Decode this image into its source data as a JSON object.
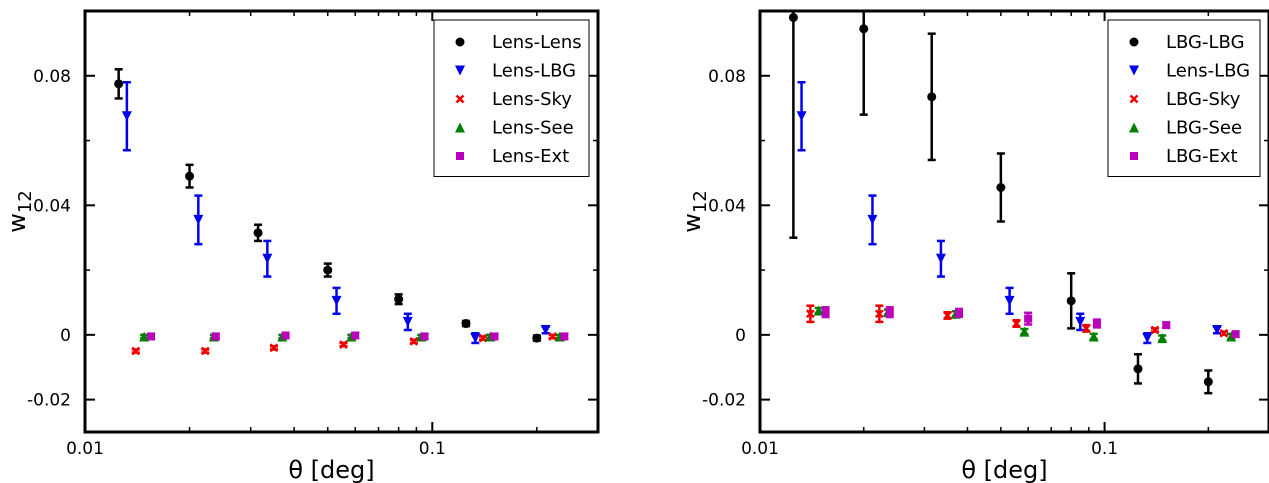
{
  "chart_data": [
    {
      "type": "scatter",
      "xlabel": "θ [deg]",
      "ylabel": "w12",
      "xscale": "log",
      "xlim": [
        0.01,
        0.3
      ],
      "ylim": [
        -0.03,
        0.1
      ],
      "xticks": [
        {
          "v": 0.01,
          "label": "0.01"
        },
        {
          "v": 0.1,
          "label": "0.1"
        }
      ],
      "yticks": [
        {
          "v": 0.08,
          "label": "0.08"
        },
        {
          "v": 0.04,
          "label": "0.04"
        },
        {
          "v": 0,
          "label": "0"
        },
        {
          "v": -0.02,
          "label": "-0.02"
        }
      ],
      "legend_position": "top-right",
      "series": [
        {
          "name": "Lens-Lens",
          "marker": "circle",
          "color": "#000000",
          "x": [
            0.0125,
            0.02,
            0.0315,
            0.05,
            0.08,
            0.125,
            0.2
          ],
          "y": [
            0.0775,
            0.049,
            0.0315,
            0.02,
            0.011,
            0.0035,
            -0.001
          ],
          "err": [
            0.0045,
            0.0035,
            0.0025,
            0.002,
            0.0015,
            0.0008,
            0.0008
          ]
        },
        {
          "name": "Lens-LBG",
          "marker": "triangle-down",
          "color": "#0000ee",
          "x": [
            0.0132,
            0.0212,
            0.0335,
            0.053,
            0.085,
            0.133,
            0.212
          ],
          "y": [
            0.0675,
            0.0355,
            0.0235,
            0.0105,
            0.004,
            -0.001,
            0.0015
          ],
          "err": [
            0.0105,
            0.0075,
            0.0055,
            0.004,
            0.0025,
            0.0015,
            0.001
          ]
        },
        {
          "name": "Lens-Sky",
          "marker": "x",
          "color": "#ee0000",
          "x": [
            0.014,
            0.0222,
            0.035,
            0.0555,
            0.0885,
            0.14,
            0.222
          ],
          "y": [
            -0.005,
            -0.005,
            -0.004,
            -0.003,
            -0.002,
            -0.001,
            -0.0005
          ],
          "err": [
            0.0005,
            0.0005,
            0.0005,
            0.0005,
            0.0005,
            0.0005,
            0.0005
          ]
        },
        {
          "name": "Lens-See",
          "marker": "triangle-up",
          "color": "#008000",
          "x": [
            0.0148,
            0.0235,
            0.037,
            0.0585,
            0.093,
            0.147,
            0.233
          ],
          "y": [
            -0.0005,
            -0.0005,
            -0.0005,
            -0.0005,
            -0.0005,
            -0.0005,
            -0.0005
          ],
          "err": [
            0.0005,
            0.0005,
            0.0005,
            0.0005,
            0.0005,
            0.0005,
            0.0005
          ]
        },
        {
          "name": "Lens-Ext",
          "marker": "square",
          "color": "#bb00bb",
          "x": [
            0.0155,
            0.0238,
            0.0378,
            0.06,
            0.095,
            0.151,
            0.24
          ],
          "y": [
            -0.0005,
            -0.0005,
            -0.0002,
            -0.0002,
            -0.0005,
            -0.0005,
            -0.0005
          ],
          "err": [
            0.0008,
            0.0008,
            0.0008,
            0.0008,
            0.0008,
            0.0008,
            0.0008
          ]
        }
      ]
    },
    {
      "type": "scatter",
      "xlabel": "θ [deg]",
      "ylabel": "w12",
      "xscale": "log",
      "xlim": [
        0.01,
        0.3
      ],
      "ylim": [
        -0.03,
        0.1
      ],
      "xticks": [
        {
          "v": 0.01,
          "label": "0.01"
        },
        {
          "v": 0.1,
          "label": "0.1"
        }
      ],
      "yticks": [
        {
          "v": 0.08,
          "label": "0.08"
        },
        {
          "v": 0.04,
          "label": "0.04"
        },
        {
          "v": 0,
          "label": "0"
        },
        {
          "v": -0.02,
          "label": "-0.02"
        }
      ],
      "legend_position": "top-right",
      "series": [
        {
          "name": "LBG-LBG",
          "marker": "circle",
          "color": "#000000",
          "x": [
            0.0125,
            0.02,
            0.0315,
            0.05,
            0.08,
            0.125,
            0.2
          ],
          "y": [
            0.098,
            0.0945,
            0.0735,
            0.0455,
            0.0105,
            -0.0105,
            -0.0145
          ],
          "err": [
            0.068,
            0.0265,
            0.0195,
            0.0105,
            0.0085,
            0.0045,
            0.0035
          ]
        },
        {
          "name": "Lens-LBG",
          "marker": "triangle-down",
          "color": "#0000ee",
          "x": [
            0.0132,
            0.0212,
            0.0335,
            0.053,
            0.085,
            0.133,
            0.212
          ],
          "y": [
            0.0675,
            0.0355,
            0.0235,
            0.0105,
            0.004,
            -0.001,
            0.0015
          ],
          "err": [
            0.0105,
            0.0075,
            0.0055,
            0.004,
            0.0025,
            0.0015,
            0.001
          ]
        },
        {
          "name": "LBG-Sky",
          "marker": "x",
          "color": "#ee0000",
          "x": [
            0.014,
            0.0222,
            0.035,
            0.0555,
            0.0885,
            0.14,
            0.222
          ],
          "y": [
            0.0065,
            0.0065,
            0.006,
            0.0035,
            0.002,
            0.0015,
            0.0005
          ],
          "err": [
            0.0025,
            0.0025,
            0.001,
            0.001,
            0.001,
            0.0005,
            0.0005
          ]
        },
        {
          "name": "LBG-See",
          "marker": "triangle-up",
          "color": "#008000",
          "x": [
            0.0148,
            0.0235,
            0.037,
            0.0585,
            0.093,
            0.147,
            0.233
          ],
          "y": [
            0.0075,
            0.007,
            0.0065,
            0.001,
            -0.0005,
            -0.001,
            -0.0005
          ],
          "err": [
            0.0008,
            0.0008,
            0.0008,
            0.0008,
            0.0008,
            0.0008,
            0.0008
          ]
        },
        {
          "name": "LBG-Ext",
          "marker": "square",
          "color": "#bb00bb",
          "x": [
            0.0155,
            0.0238,
            0.0378,
            0.06,
            0.095,
            0.151,
            0.24
          ],
          "y": [
            0.007,
            0.007,
            0.0068,
            0.005,
            0.0035,
            0.003,
            0.0002
          ],
          "err": [
            0.0015,
            0.0015,
            0.0012,
            0.0018,
            0.0012,
            0.0008,
            0.0008
          ]
        }
      ]
    }
  ]
}
